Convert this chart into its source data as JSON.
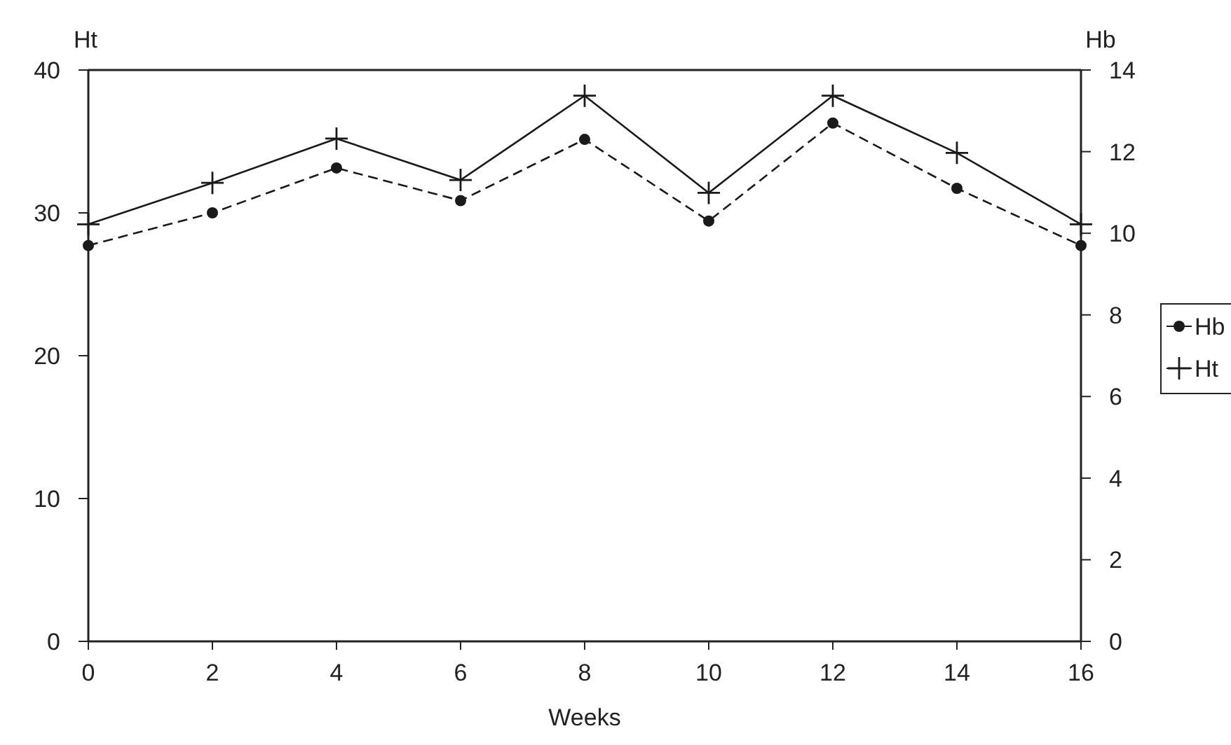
{
  "chart_data": {
    "type": "line",
    "xlabel": "Weeks",
    "ylabel": "Ht",
    "y2label": "Hb",
    "x": [
      0,
      2,
      4,
      6,
      8,
      10,
      12,
      14,
      16
    ],
    "xlim": [
      0,
      16
    ],
    "xticks": [
      0,
      2,
      4,
      6,
      8,
      10,
      12,
      14,
      16
    ],
    "ylim": [
      0,
      40
    ],
    "yticks": [
      0,
      10,
      20,
      30,
      40
    ],
    "y2lim": [
      0,
      14
    ],
    "y2ticks": [
      0,
      2,
      4,
      6,
      8,
      10,
      12,
      14
    ],
    "legend": "right",
    "grid": false,
    "series": [
      {
        "name": "Hb",
        "color": "#1a1a1a",
        "axis": "y2",
        "marker": "circle",
        "line_style": "dashed",
        "values": [
          9.7,
          10.5,
          11.6,
          10.8,
          12.3,
          10.3,
          12.7,
          11.1,
          9.7
        ]
      },
      {
        "name": "Ht",
        "color": "#1a1a1a",
        "axis": "y",
        "marker": "cross",
        "line_style": "solid",
        "values": [
          29.2,
          32.1,
          35.2,
          32.3,
          38.2,
          31.4,
          38.2,
          34.2,
          29.2
        ]
      }
    ]
  }
}
